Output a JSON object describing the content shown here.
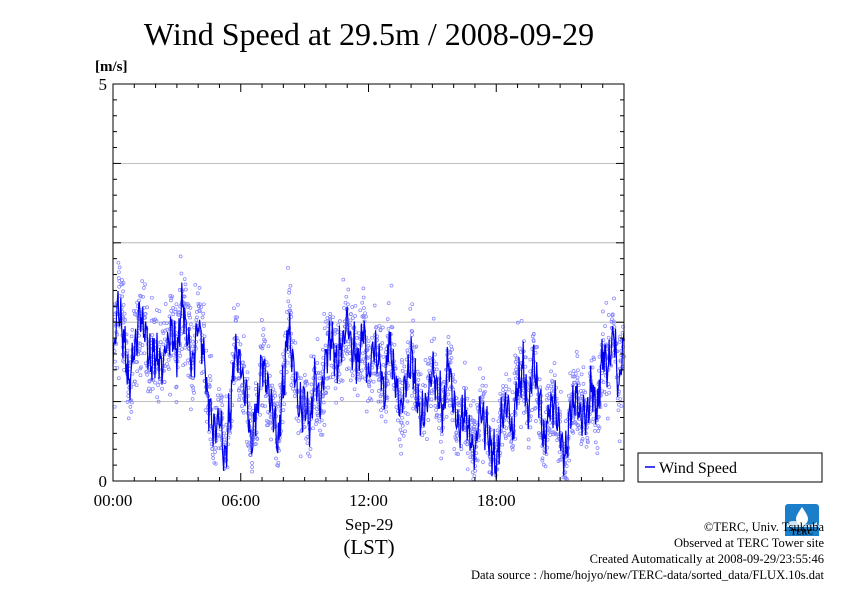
{
  "chart_data": {
    "type": "line",
    "title": "Wind Speed at 29.5m / 2008-09-29",
    "ylabel": "[m/s]",
    "xlabel": "(LST)",
    "date_label": "Sep-29",
    "ylim": [
      0,
      5
    ],
    "xlim": [
      "00:00",
      "24:00"
    ],
    "y_ticks": [
      0,
      5
    ],
    "x_ticks": [
      "00:00",
      "06:00",
      "12:00",
      "18:00"
    ],
    "grid": true,
    "legend_position": "bottom-right, outside plot",
    "colors": {
      "line": "#0000ee",
      "points": "#8080ff",
      "grid": "#aaaaaa"
    },
    "series": [
      {
        "name": "Wind Speed",
        "style": "line + scatter (10 s samples)",
        "x_hours": [
          0.0,
          0.25,
          0.5,
          0.75,
          1.0,
          1.25,
          1.5,
          1.75,
          2.0,
          2.25,
          2.5,
          2.75,
          3.0,
          3.25,
          3.5,
          3.75,
          4.0,
          4.25,
          4.5,
          4.75,
          5.0,
          5.25,
          5.5,
          5.75,
          6.0,
          6.25,
          6.5,
          6.75,
          7.0,
          7.25,
          7.5,
          7.75,
          8.0,
          8.25,
          8.5,
          8.75,
          9.0,
          9.25,
          9.5,
          9.75,
          10.0,
          10.25,
          10.5,
          10.75,
          11.0,
          11.25,
          11.5,
          11.75,
          12.0,
          12.25,
          12.5,
          12.75,
          13.0,
          13.25,
          13.5,
          13.75,
          14.0,
          14.25,
          14.5,
          14.75,
          15.0,
          15.25,
          15.5,
          15.75,
          16.0,
          16.25,
          16.5,
          16.75,
          17.0,
          17.25,
          17.5,
          17.75,
          18.0,
          18.25,
          18.5,
          18.75,
          19.0,
          19.25,
          19.5,
          19.75,
          20.0,
          20.25,
          20.5,
          20.75,
          21.0,
          21.25,
          21.5,
          21.75,
          22.0,
          22.25,
          22.5,
          22.75,
          23.0,
          23.25,
          23.5,
          23.75,
          24.0
        ],
        "values": [
          1.5,
          2.2,
          1.8,
          1.3,
          1.6,
          2.1,
          1.9,
          1.5,
          1.6,
          1.4,
          1.7,
          1.9,
          1.6,
          2.3,
          1.8,
          1.5,
          2.0,
          1.6,
          1.0,
          0.6,
          0.8,
          0.3,
          0.9,
          1.7,
          1.4,
          1.1,
          0.5,
          0.9,
          1.5,
          1.2,
          0.9,
          0.5,
          1.2,
          1.9,
          1.4,
          0.9,
          1.0,
          0.7,
          1.3,
          1.0,
          1.6,
          1.8,
          1.5,
          1.7,
          2.0,
          1.7,
          1.5,
          1.9,
          1.3,
          1.7,
          1.5,
          1.1,
          1.8,
          1.3,
          0.9,
          1.2,
          1.6,
          1.1,
          0.8,
          1.0,
          1.4,
          1.1,
          0.9,
          1.5,
          1.0,
          0.7,
          0.9,
          0.6,
          0.4,
          0.9,
          0.7,
          0.4,
          0.2,
          0.8,
          1.0,
          0.6,
          1.2,
          1.4,
          0.9,
          1.5,
          1.1,
          0.5,
          0.9,
          1.0,
          0.6,
          0.3,
          0.9,
          1.1,
          0.8,
          0.8,
          1.2,
          0.9,
          1.6,
          1.4,
          1.9,
          1.2,
          1.8
        ]
      }
    ]
  },
  "credits": {
    "line1": "©TERC, Univ. Tsukuba",
    "line2": "Observed at TERC Tower site",
    "line3": "Created Automatically at 2008-09-29/23:55:46",
    "line4": "Data source : /home/hojyo/new/TERC-data/sorted_data/FLUX.10s.dat"
  },
  "logo": {
    "text": "TERC",
    "color": "#1a7fc8"
  }
}
